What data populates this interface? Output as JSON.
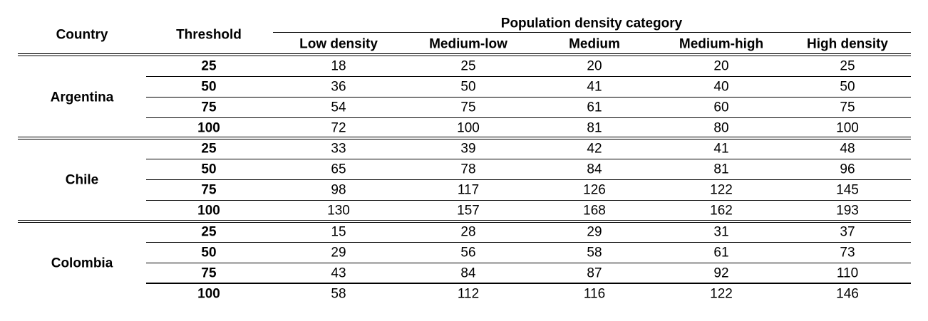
{
  "table": {
    "headers": {
      "country": "Country",
      "threshold": "Threshold",
      "group": "Population density category",
      "categories": [
        "Low density",
        "Medium-low",
        "Medium",
        "Medium-high",
        "High density"
      ]
    },
    "countries": [
      {
        "name": "Argentina",
        "rows": [
          {
            "threshold": "25",
            "values": [
              "18",
              "25",
              "20",
              "20",
              "25"
            ]
          },
          {
            "threshold": "50",
            "values": [
              "36",
              "50",
              "41",
              "40",
              "50"
            ]
          },
          {
            "threshold": "75",
            "values": [
              "54",
              "75",
              "61",
              "60",
              "75"
            ]
          },
          {
            "threshold": "100",
            "values": [
              "72",
              "100",
              "81",
              "80",
              "100"
            ]
          }
        ]
      },
      {
        "name": "Chile",
        "rows": [
          {
            "threshold": "25",
            "values": [
              "33",
              "39",
              "42",
              "41",
              "48"
            ]
          },
          {
            "threshold": "50",
            "values": [
              "65",
              "78",
              "84",
              "81",
              "96"
            ]
          },
          {
            "threshold": "75",
            "values": [
              "98",
              "117",
              "126",
              "122",
              "145"
            ]
          },
          {
            "threshold": "100",
            "values": [
              "130",
              "157",
              "168",
              "162",
              "193"
            ]
          }
        ]
      },
      {
        "name": "Colombia",
        "rows": [
          {
            "threshold": "25",
            "values": [
              "15",
              "28",
              "29",
              "31",
              "37"
            ]
          },
          {
            "threshold": "50",
            "values": [
              "29",
              "56",
              "58",
              "61",
              "73"
            ]
          },
          {
            "threshold": "75",
            "values": [
              "43",
              "84",
              "87",
              "92",
              "110"
            ]
          },
          {
            "threshold": "100",
            "values": [
              "58",
              "112",
              "116",
              "122",
              "146"
            ]
          }
        ]
      }
    ]
  }
}
